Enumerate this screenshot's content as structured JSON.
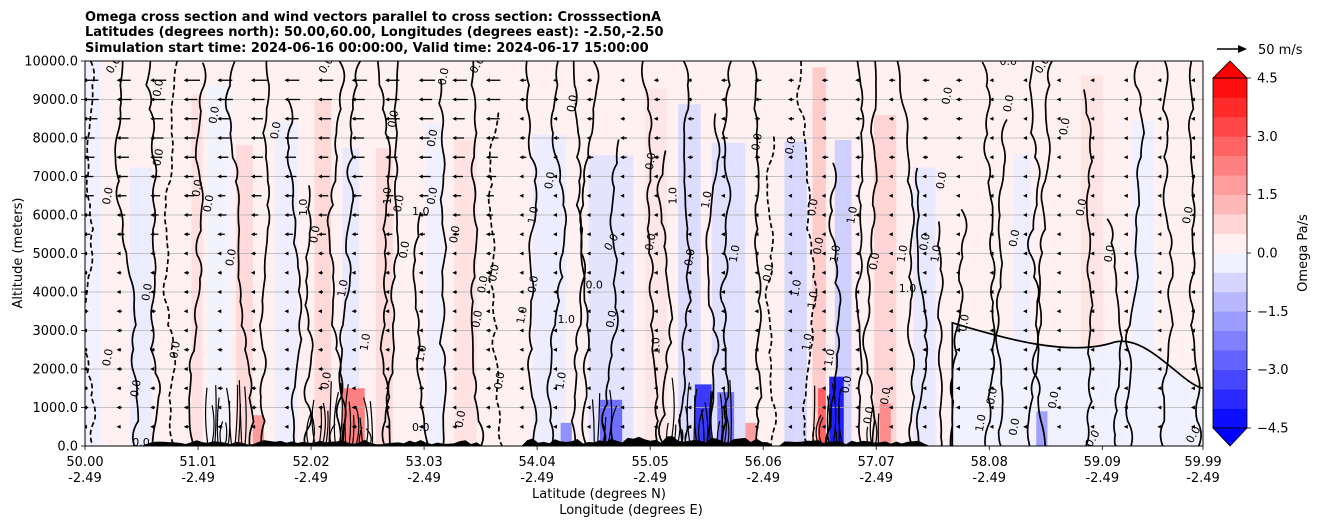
{
  "chart_data": {
    "type": "heatmap",
    "title_lines": [
      "Omega cross section and wind vectors parallel to cross section: CrosssectionA",
      "Latitudes (degrees north): 50.00,60.00, Longitudes (degrees east): -2.50,-2.50",
      "Simulation start time: 2024-06-16 00:00:00, Valid time: 2024-06-17 15:00:00"
    ],
    "ylabel": "Altitude (meters)",
    "xlabel_lines": [
      "Latitude (degrees N)",
      "Longitude (degrees E)"
    ],
    "ylim": [
      0,
      10000
    ],
    "xlim": [
      50.0,
      59.99
    ],
    "y_ticks": [
      {
        "value": 0,
        "label": "0.0"
      },
      {
        "value": 1000,
        "label": "1000.0"
      },
      {
        "value": 2000,
        "label": "2000.0"
      },
      {
        "value": 3000,
        "label": "3000.0"
      },
      {
        "value": 4000,
        "label": "4000.0"
      },
      {
        "value": 5000,
        "label": "5000.0"
      },
      {
        "value": 6000,
        "label": "6000.0"
      },
      {
        "value": 7000,
        "label": "7000.0"
      },
      {
        "value": 8000,
        "label": "8000.0"
      },
      {
        "value": 9000,
        "label": "9000.0"
      },
      {
        "value": 10000,
        "label": "10000.0"
      }
    ],
    "x_ticks": [
      {
        "value": 50.0,
        "lat": "50.00",
        "lon": "-2.49"
      },
      {
        "value": 51.01,
        "lat": "51.01",
        "lon": "-2.49"
      },
      {
        "value": 52.02,
        "lat": "52.02",
        "lon": "-2.49"
      },
      {
        "value": 53.03,
        "lat": "53.03",
        "lon": "-2.49"
      },
      {
        "value": 54.04,
        "lat": "54.04",
        "lon": "-2.49"
      },
      {
        "value": 55.05,
        "lat": "55.05",
        "lon": "-2.49"
      },
      {
        "value": 56.06,
        "lat": "56.06",
        "lon": "-2.49"
      },
      {
        "value": 57.07,
        "lat": "57.07",
        "lon": "-2.49"
      },
      {
        "value": 58.08,
        "lat": "58.08",
        "lon": "-2.49"
      },
      {
        "value": 59.09,
        "lat": "59.09",
        "lon": "-2.49"
      },
      {
        "value": 59.99,
        "lat": "59.99",
        "lon": "-2.49"
      }
    ],
    "grid": "horizontal",
    "colorbar": {
      "label": "Omega Pa/s",
      "range": [
        -5.25,
        5.25
      ],
      "ticks": [
        {
          "value": 4.5,
          "label": "4.5"
        },
        {
          "value": 3.0,
          "label": "3.0"
        },
        {
          "value": 1.5,
          "label": "1.5"
        },
        {
          "value": 0.0,
          "label": "0.0"
        },
        {
          "value": -1.5,
          "label": "−1.5"
        },
        {
          "value": -3.0,
          "label": "−3.0"
        },
        {
          "value": -4.5,
          "label": "−4.5"
        }
      ],
      "positive_color": "#ff0000",
      "negative_color": "#0000ff"
    },
    "quiver_key": {
      "label": "50 m/s"
    },
    "contour_labels": [
      {
        "text": "0.0",
        "lat": 50.25,
        "alt": 9900,
        "rot": -60
      },
      {
        "text": "0.0",
        "lat": 50.65,
        "alt": 9300,
        "rot": -80
      },
      {
        "text": "0.0",
        "lat": 51.15,
        "alt": 8600,
        "rot": -80
      },
      {
        "text": "0.0",
        "lat": 50.65,
        "alt": 7500,
        "rot": -80
      },
      {
        "text": "0.0",
        "lat": 50.2,
        "alt": 6500,
        "rot": -80
      },
      {
        "text": "0.0",
        "lat": 51.0,
        "alt": 6700,
        "rot": -80
      },
      {
        "text": "0.0",
        "lat": 51.1,
        "alt": 6300,
        "rot": -80
      },
      {
        "text": "1.0",
        "lat": 51.95,
        "alt": 6200,
        "rot": -90
      },
      {
        "text": "0.0",
        "lat": 51.7,
        "alt": 8200,
        "rot": -80
      },
      {
        "text": "0.0",
        "lat": 52.15,
        "alt": 9900,
        "rot": -60
      },
      {
        "text": "0.0",
        "lat": 52.75,
        "alt": 8500,
        "rot": -80
      },
      {
        "text": "0.0",
        "lat": 52.8,
        "alt": 6300,
        "rot": -80
      },
      {
        "text": "1.0",
        "lat": 52.7,
        "alt": 6500,
        "rot": -90
      },
      {
        "text": "1.0",
        "lat": 53.0,
        "alt": 6100,
        "rot": 0
      },
      {
        "text": "0.0",
        "lat": 53.2,
        "alt": 9600,
        "rot": -80
      },
      {
        "text": "0.0",
        "lat": 53.5,
        "alt": 9900,
        "rot": -60
      },
      {
        "text": "0.0",
        "lat": 53.1,
        "alt": 8000,
        "rot": -80
      },
      {
        "text": "0.0",
        "lat": 53.1,
        "alt": 6500,
        "rot": -80
      },
      {
        "text": "0.0",
        "lat": 53.3,
        "alt": 5500,
        "rot": -80
      },
      {
        "text": "0.0",
        "lat": 52.85,
        "alt": 5100,
        "rot": -80
      },
      {
        "text": "0.0",
        "lat": 53.65,
        "alt": 4500,
        "rot": -80
      },
      {
        "text": "0.0",
        "lat": 53.55,
        "alt": 4200,
        "rot": -80
      },
      {
        "text": "1.0",
        "lat": 52.3,
        "alt": 4100,
        "rot": -80
      },
      {
        "text": "0.0",
        "lat": 52.05,
        "alt": 5500,
        "rot": -80
      },
      {
        "text": "0.0",
        "lat": 51.3,
        "alt": 4900,
        "rot": -80
      },
      {
        "text": "0.0",
        "lat": 50.55,
        "alt": 4000,
        "rot": -80
      },
      {
        "text": "0.0",
        "lat": 50.8,
        "alt": 2500,
        "rot": -80
      },
      {
        "text": "0.0",
        "lat": 50.2,
        "alt": 2300,
        "rot": -80
      },
      {
        "text": "0.0",
        "lat": 52.15,
        "alt": 1700,
        "rot": -80
      },
      {
        "text": "0.0",
        "lat": 50.45,
        "alt": 1500,
        "rot": -80
      },
      {
        "text": "1.0",
        "lat": 52.5,
        "alt": 2700,
        "rot": -80
      },
      {
        "text": "1.0",
        "lat": 53.0,
        "alt": 2400,
        "rot": -80
      },
      {
        "text": "0.0",
        "lat": 53.5,
        "alt": 3300,
        "rot": -80
      },
      {
        "text": "0.0",
        "lat": 53.7,
        "alt": 1700,
        "rot": -80
      },
      {
        "text": "0.0",
        "lat": 53.35,
        "alt": 700,
        "rot": -80
      },
      {
        "text": "0.0",
        "lat": 53.0,
        "alt": 500,
        "rot": 0
      },
      {
        "text": "1.0",
        "lat": 53.9,
        "alt": 3400,
        "rot": -80
      },
      {
        "text": "0.0",
        "lat": 54.35,
        "alt": 8900,
        "rot": -80
      },
      {
        "text": "0.0",
        "lat": 54.15,
        "alt": 6900,
        "rot": -80
      },
      {
        "text": "1.0",
        "lat": 54.0,
        "alt": 6000,
        "rot": -80
      },
      {
        "text": "0.0",
        "lat": 54.0,
        "alt": 4200,
        "rot": -80
      },
      {
        "text": "0.0",
        "lat": 54.55,
        "alt": 4200,
        "rot": 0
      },
      {
        "text": "0.0",
        "lat": 54.7,
        "alt": 3300,
        "rot": -80
      },
      {
        "text": "0.0",
        "lat": 54.7,
        "alt": 5300,
        "rot": -60
      },
      {
        "text": "1.0",
        "lat": 54.25,
        "alt": 1700,
        "rot": -80
      },
      {
        "text": "1.0",
        "lat": 54.3,
        "alt": 3300,
        "rot": 0
      },
      {
        "text": "0.0",
        "lat": 55.05,
        "alt": 7400,
        "rot": -80
      },
      {
        "text": "0.0",
        "lat": 55.05,
        "alt": 5300,
        "rot": -80
      },
      {
        "text": "1.0",
        "lat": 55.25,
        "alt": 6500,
        "rot": -90
      },
      {
        "text": "0.0",
        "lat": 55.4,
        "alt": 4900,
        "rot": -80
      },
      {
        "text": "1.0",
        "lat": 55.55,
        "alt": 6400,
        "rot": -80
      },
      {
        "text": "1.0",
        "lat": 55.1,
        "alt": 2600,
        "rot": -90
      },
      {
        "text": "1.0",
        "lat": 55.8,
        "alt": 5000,
        "rot": -80
      },
      {
        "text": "0.0",
        "lat": 56.0,
        "alt": 7900,
        "rot": -80
      },
      {
        "text": "0.0",
        "lat": 56.3,
        "alt": 7800,
        "rot": -80
      },
      {
        "text": "0.0",
        "lat": 56.1,
        "alt": 4500,
        "rot": -80
      },
      {
        "text": "1.0",
        "lat": 56.35,
        "alt": 4100,
        "rot": -80
      },
      {
        "text": "1.0",
        "lat": 56.45,
        "alt": 2700,
        "rot": -80
      },
      {
        "text": "1.0",
        "lat": 56.5,
        "alt": 3800,
        "rot": -80
      },
      {
        "text": "0.0",
        "lat": 56.5,
        "alt": 6200,
        "rot": -80
      },
      {
        "text": "0.0",
        "lat": 56.55,
        "alt": 5200,
        "rot": -80
      },
      {
        "text": "1.0",
        "lat": 56.7,
        "alt": 5000,
        "rot": -80
      },
      {
        "text": "1.0",
        "lat": 56.85,
        "alt": 6000,
        "rot": -80
      },
      {
        "text": "1.0",
        "lat": 56.65,
        "alt": 2300,
        "rot": -80
      },
      {
        "text": "0.0",
        "lat": 56.8,
        "alt": 1600,
        "rot": -80
      },
      {
        "text": "0.0",
        "lat": 57.05,
        "alt": 4800,
        "rot": -80
      },
      {
        "text": "1.0",
        "lat": 57.35,
        "alt": 4100,
        "rot": 0
      },
      {
        "text": "1.0",
        "lat": 57.3,
        "alt": 5000,
        "rot": -80
      },
      {
        "text": "0.0",
        "lat": 57.5,
        "alt": 5300,
        "rot": -80
      },
      {
        "text": "1.0",
        "lat": 57.6,
        "alt": 5000,
        "rot": -80
      },
      {
        "text": "0.0",
        "lat": 57.15,
        "alt": 1300,
        "rot": -80
      },
      {
        "text": "0.0",
        "lat": 57.0,
        "alt": 800,
        "rot": -80
      },
      {
        "text": "0.0",
        "lat": 57.85,
        "alt": 3200,
        "rot": -80
      },
      {
        "text": "0.0",
        "lat": 58.1,
        "alt": 1300,
        "rot": -80
      },
      {
        "text": "1.0",
        "lat": 58.0,
        "alt": 600,
        "rot": -80
      },
      {
        "text": "0.0",
        "lat": 58.3,
        "alt": 500,
        "rot": -80
      },
      {
        "text": "0.0",
        "lat": 57.7,
        "alt": 9100,
        "rot": -80
      },
      {
        "text": "0.0",
        "lat": 57.65,
        "alt": 6900,
        "rot": -80
      },
      {
        "text": "0.0",
        "lat": 58.25,
        "alt": 8900,
        "rot": -80
      },
      {
        "text": "0.0",
        "lat": 58.3,
        "alt": 5400,
        "rot": -80
      },
      {
        "text": "0.0",
        "lat": 58.25,
        "alt": 10000,
        "rot": 0
      },
      {
        "text": "0.0",
        "lat": 58.55,
        "alt": 9900,
        "rot": -60
      },
      {
        "text": "0.0",
        "lat": 58.75,
        "alt": 8300,
        "rot": -80
      },
      {
        "text": "0.0",
        "lat": 58.65,
        "alt": 1200,
        "rot": -80
      },
      {
        "text": "0.0",
        "lat": 59.0,
        "alt": 200,
        "rot": -60
      },
      {
        "text": "0.0",
        "lat": 58.9,
        "alt": 6200,
        "rot": -80
      },
      {
        "text": "0.0",
        "lat": 59.15,
        "alt": 5000,
        "rot": -80
      },
      {
        "text": "0.0",
        "lat": 59.85,
        "alt": 6000,
        "rot": -80
      },
      {
        "text": "0.0",
        "lat": 59.9,
        "alt": 300,
        "rot": -60
      },
      {
        "text": "0.0",
        "lat": 50.5,
        "alt": 100,
        "rot": 0
      }
    ]
  }
}
